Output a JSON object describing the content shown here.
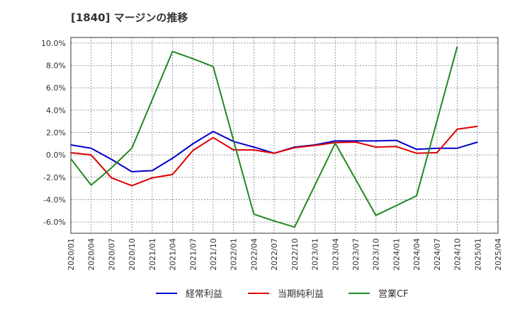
{
  "chart_data": {
    "type": "line",
    "title": "[1840]  マージンの推移",
    "xlabel": "",
    "ylabel": "",
    "x": [
      "2020/01",
      "2020/04",
      "2020/07",
      "2020/10",
      "2021/01",
      "2021/04",
      "2021/07",
      "2021/10",
      "2022/01",
      "2022/04",
      "2022/07",
      "2022/10",
      "2023/01",
      "2023/04",
      "2023/07",
      "2023/10",
      "2024/01",
      "2024/04",
      "2024/07",
      "2024/10",
      "2025/01",
      "2025/04"
    ],
    "ylim": [
      -7.0,
      10.5
    ],
    "yticks": [
      10.0,
      8.0,
      6.0,
      4.0,
      2.0,
      0.0,
      -2.0,
      -4.0,
      -6.0
    ],
    "ytick_labels": [
      "10.0%",
      "8.0%",
      "6.0%",
      "4.0%",
      "2.0%",
      "0.0%",
      "-2.0%",
      "-4.0%",
      "-6.0%"
    ],
    "grid": true,
    "legend_position": "bottom",
    "series": [
      {
        "name": "経常利益",
        "color": "#0000cc",
        "values": [
          0.9,
          0.6,
          -0.4,
          -1.5,
          -1.4,
          -0.3,
          1.0,
          2.1,
          1.2,
          0.7,
          0.15,
          0.7,
          0.9,
          1.25,
          1.25,
          1.25,
          1.3,
          0.5,
          0.6,
          0.6,
          1.15,
          null
        ]
      },
      {
        "name": "当期純利益",
        "color": "#dd0000",
        "values": [
          0.2,
          0.0,
          -2.05,
          -2.75,
          -2.05,
          -1.75,
          0.4,
          1.55,
          0.45,
          0.45,
          0.15,
          0.65,
          0.85,
          1.1,
          1.15,
          0.7,
          0.75,
          0.15,
          0.2,
          2.3,
          2.55,
          null
        ]
      },
      {
        "name": "営業CF",
        "color": "#228822",
        "values": [
          -0.35,
          -2.7,
          -1.15,
          0.6,
          null,
          9.25,
          8.6,
          7.9,
          null,
          -5.3,
          -5.9,
          -6.45,
          null,
          1.05,
          null,
          -5.4,
          null,
          -3.65,
          null,
          9.7,
          null,
          null
        ]
      }
    ]
  }
}
